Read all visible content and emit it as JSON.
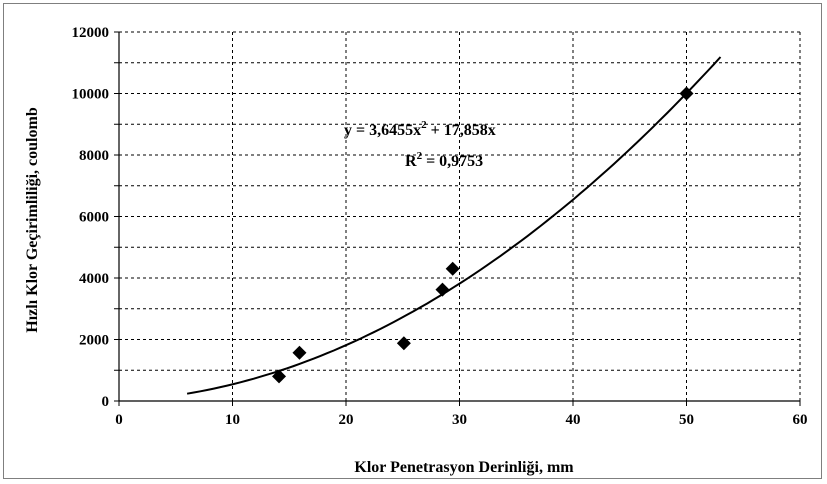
{
  "chart_data": {
    "type": "scatter",
    "title": "",
    "xlabel": "Klor Penetrasyon Derinliği, mm",
    "ylabel": "Hızlı Klor Geçirimliliği, coulomb",
    "xlim": [
      0,
      60
    ],
    "ylim": [
      0,
      12000
    ],
    "x_ticks": [
      0,
      10,
      20,
      30,
      40,
      50,
      60
    ],
    "y_ticks": [
      0,
      2000,
      4000,
      6000,
      8000,
      10000,
      12000
    ],
    "grid": "dashed, major and minor horizontal, major vertical",
    "points": [
      {
        "x": 14.1,
        "y": 800
      },
      {
        "x": 15.9,
        "y": 1570
      },
      {
        "x": 25.1,
        "y": 1880
      },
      {
        "x": 28.5,
        "y": 3620
      },
      {
        "x": 29.4,
        "y": 4300
      },
      {
        "x": 50.0,
        "y": 10000
      }
    ],
    "trendline": {
      "type": "polynomial",
      "a2": 3.6455,
      "a1": 17.858,
      "x_range": [
        6,
        53
      ],
      "equation_label": {
        "prefix": "y = 3,6455x",
        "sup": "2",
        "suffix": " + 17,858x",
        "r2_prefix": "R",
        "r2_sup": "2",
        "r2_suffix": " = 0,9753"
      }
    },
    "marker_color": "#000000",
    "line_color": "#000000"
  }
}
